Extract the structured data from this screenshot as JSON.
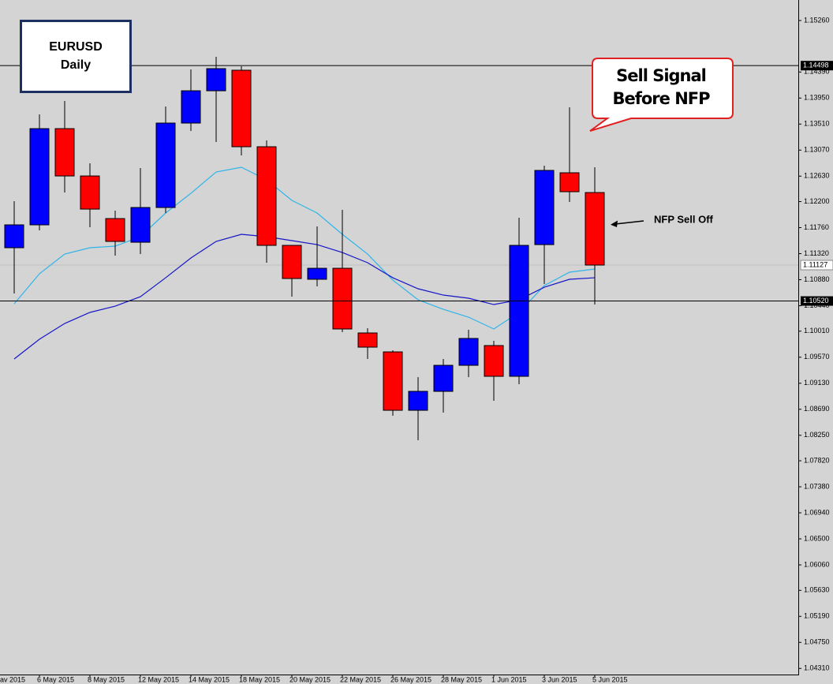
{
  "chart_data": {
    "type": "candlestick",
    "symbol": "EURUSD",
    "timeframe": "Daily",
    "categories": [
      null,
      "6 May 2015",
      null,
      "8 May 2015",
      null,
      "12 May 2015",
      null,
      "14 May 2015",
      null,
      "18 May 2015",
      null,
      "20 May 2015",
      null,
      "22 May 2015",
      null,
      "26 May 2015",
      null,
      "28 May 2015",
      null,
      "1 Jun 2015",
      null,
      "3 Jun 2015",
      null,
      "5 Jun 2015"
    ],
    "edge_label": "av 2015",
    "open": [
      1.1142,
      1.11807,
      1.13433,
      1.12633,
      1.11913,
      1.11513,
      1.121,
      1.13527,
      1.14073,
      1.1442,
      1.13127,
      1.1146,
      1.10887,
      1.11073,
      1.0998,
      1.0966,
      1.08673,
      1.08993,
      1.09433,
      1.09767,
      1.09247,
      1.11473,
      1.12687,
      1.12353
    ],
    "high": [
      1.12207,
      1.13673,
      1.139,
      1.12847,
      1.12047,
      1.12767,
      1.13807,
      1.14433,
      1.14647,
      1.14487,
      1.13233,
      1.1146,
      1.1178,
      1.1206,
      1.1006,
      1.09687,
      1.09233,
      1.0954,
      1.10033,
      1.09847,
      1.11927,
      1.12807,
      1.13793,
      1.1278
    ],
    "low": [
      1.10647,
      1.11713,
      1.12353,
      1.11767,
      1.11287,
      1.11313,
      1.12007,
      1.13393,
      1.13207,
      1.1298,
      1.11167,
      1.10593,
      1.10767,
      1.09993,
      1.0954,
      1.0858,
      1.08167,
      1.08633,
      1.09233,
      1.08833,
      1.09113,
      1.10807,
      1.12193,
      1.1046
    ],
    "close": [
      1.11807,
      1.13433,
      1.12633,
      1.12073,
      1.11527,
      1.121,
      1.13527,
      1.14073,
      1.14447,
      1.13127,
      1.1146,
      1.109,
      1.11073,
      1.10047,
      1.0974,
      1.08673,
      1.08993,
      1.09433,
      1.09887,
      1.09247,
      1.1146,
      1.12727,
      1.12367,
      1.11127
    ],
    "up_color": "#0000ff",
    "down_color": "#ff0000",
    "moving_averages": [
      {
        "color": "#2fb4ea",
        "values": [
          1.10473,
          1.1098,
          1.11313,
          1.1142,
          1.11447,
          1.11607,
          1.12007,
          1.1234,
          1.127,
          1.1278,
          1.12567,
          1.1222,
          1.12007,
          1.11647,
          1.11313,
          1.10873,
          1.1054,
          1.1038,
          1.10247,
          1.10047,
          1.10327,
          1.1078,
          1.11007,
          1.1106
        ]
      },
      {
        "color": "#1616c8",
        "values": [
          1.0954,
          1.09873,
          1.1014,
          1.10327,
          1.10433,
          1.10593,
          1.10913,
          1.11247,
          1.11527,
          1.11647,
          1.11607,
          1.1154,
          1.11473,
          1.1134,
          1.11167,
          1.10913,
          1.10727,
          1.1062,
          1.10567,
          1.1046,
          1.1054,
          1.10753,
          1.10887,
          1.10913
        ]
      }
    ],
    "ylim": [
      1.04047,
      1.15607
    ],
    "yticks": [
      {
        "value": 1.1526,
        "label": "1.15260"
      },
      {
        "value": 1.1439,
        "label": "1.14390"
      },
      {
        "value": 1.1395,
        "label": "1.13950"
      },
      {
        "value": 1.1351,
        "label": "1.13510"
      },
      {
        "value": 1.1307,
        "label": "1.13070"
      },
      {
        "value": 1.1263,
        "label": "1.12630"
      },
      {
        "value": 1.122,
        "label": "1.12200"
      },
      {
        "value": 1.1176,
        "label": "1.11760"
      },
      {
        "value": 1.1132,
        "label": "1.11320"
      },
      {
        "value": 1.1088,
        "label": "1.10880"
      },
      {
        "value": 1.1044,
        "label": "1.10440"
      },
      {
        "value": 1.1001,
        "label": "1.10010"
      },
      {
        "value": 1.0957,
        "label": "1.09570"
      },
      {
        "value": 1.0913,
        "label": "1.09130"
      },
      {
        "value": 1.0869,
        "label": "1.08690"
      },
      {
        "value": 1.0825,
        "label": "1.08250"
      },
      {
        "value": 1.0782,
        "label": "1.07820"
      },
      {
        "value": 1.0738,
        "label": "1.07380"
      },
      {
        "value": 1.0694,
        "label": "1.06940"
      },
      {
        "value": 1.065,
        "label": "1.06500"
      },
      {
        "value": 1.0606,
        "label": "1.06060"
      },
      {
        "value": 1.0563,
        "label": "1.05630"
      },
      {
        "value": 1.0519,
        "label": "1.05190"
      },
      {
        "value": 1.0475,
        "label": "1.04750"
      },
      {
        "value": 1.0431,
        "label": "1.04310"
      }
    ],
    "levels": [
      {
        "value": 1.14498,
        "label": "1.14498"
      },
      {
        "value": 1.1052,
        "label": "1.10520"
      }
    ],
    "bid": {
      "value": 1.11127,
      "label": "1.11127"
    },
    "callout": [
      "Sell Signal",
      "Before NFP"
    ],
    "arrow_note": "NFP Sell Off"
  }
}
